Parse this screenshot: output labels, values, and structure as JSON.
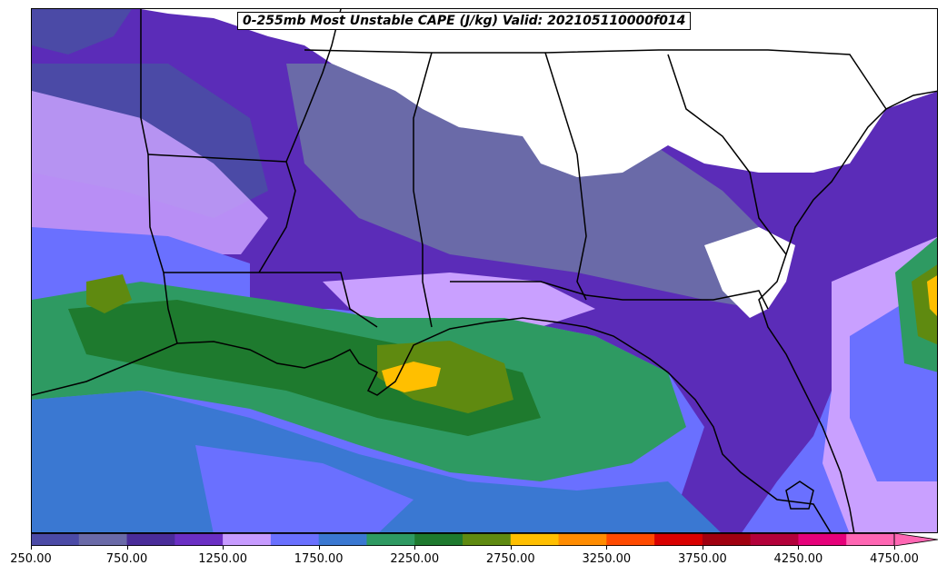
{
  "title": "0-255mb Most Unstable CAPE (J/kg) Valid: 202105110000f014",
  "colorbar": {
    "ticks": [
      "250.00",
      "750.00",
      "1250.00",
      "1750.00",
      "2250.00",
      "2750.00",
      "3250.00",
      "3750.00",
      "4250.00",
      "4750.00"
    ],
    "colors": [
      "#4b4aa6",
      "#6a6aa8",
      "#4a2c9a",
      "#6b2fc4",
      "#c79bff",
      "#6a70ff",
      "#3a78d2",
      "#2e9a62",
      "#1e7a2e",
      "#5f8a10",
      "#ffbf00",
      "#ff8c00",
      "#ff4a00",
      "#d90000",
      "#a00010",
      "#b3003a",
      "#e6007a",
      "#ff66b3"
    ]
  },
  "map": {
    "colors": {
      "none": "#ffffff",
      "low": "#4b4aa6",
      "low2": "#6a6aa8",
      "purple": "#5b2cb8",
      "violet": "#7a3bd6",
      "lavender": "#c9a0ff",
      "blue": "#6a70ff",
      "steel": "#3a78d2",
      "teal": "#2e9a62",
      "green": "#1e7a2e",
      "olive": "#5f8a10",
      "gold": "#ffbf00"
    }
  }
}
